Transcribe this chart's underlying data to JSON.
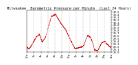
{
  "title": "Milwaukee  Barometric Pressure per Minute  (Last 24 Hours)",
  "bg_color": "#ffffff",
  "line_color": "#cc0000",
  "grid_color": "#999999",
  "ylim": [
    29.0,
    30.55
  ],
  "ytick_vals": [
    29.0,
    29.1,
    29.2,
    29.3,
    29.4,
    29.5,
    29.6,
    29.7,
    29.8,
    29.9,
    30.0,
    30.1,
    30.2,
    30.3,
    30.4,
    30.5
  ],
  "title_fontsize": 3.8,
  "tick_fontsize": 2.8,
  "num_points": 1440,
  "keypoints_x": [
    0,
    0.03,
    0.07,
    0.11,
    0.15,
    0.18,
    0.22,
    0.29,
    0.34,
    0.4,
    0.46,
    0.52,
    0.57,
    0.62,
    0.67,
    0.72,
    0.76,
    0.8,
    0.84,
    0.88,
    0.92,
    0.96,
    1.0
  ],
  "keypoints_y": [
    29.18,
    29.12,
    29.32,
    29.55,
    29.65,
    29.38,
    29.52,
    30.32,
    30.4,
    30.08,
    29.82,
    29.42,
    29.12,
    29.15,
    29.22,
    29.62,
    29.52,
    29.08,
    29.05,
    29.32,
    29.4,
    29.25,
    29.15
  ],
  "xtick_labels": [
    "12a",
    "2a",
    "4a",
    "6a",
    "8a",
    "10a",
    "12p",
    "2p",
    "4p",
    "6p",
    "8p",
    "10p",
    "12a"
  ]
}
